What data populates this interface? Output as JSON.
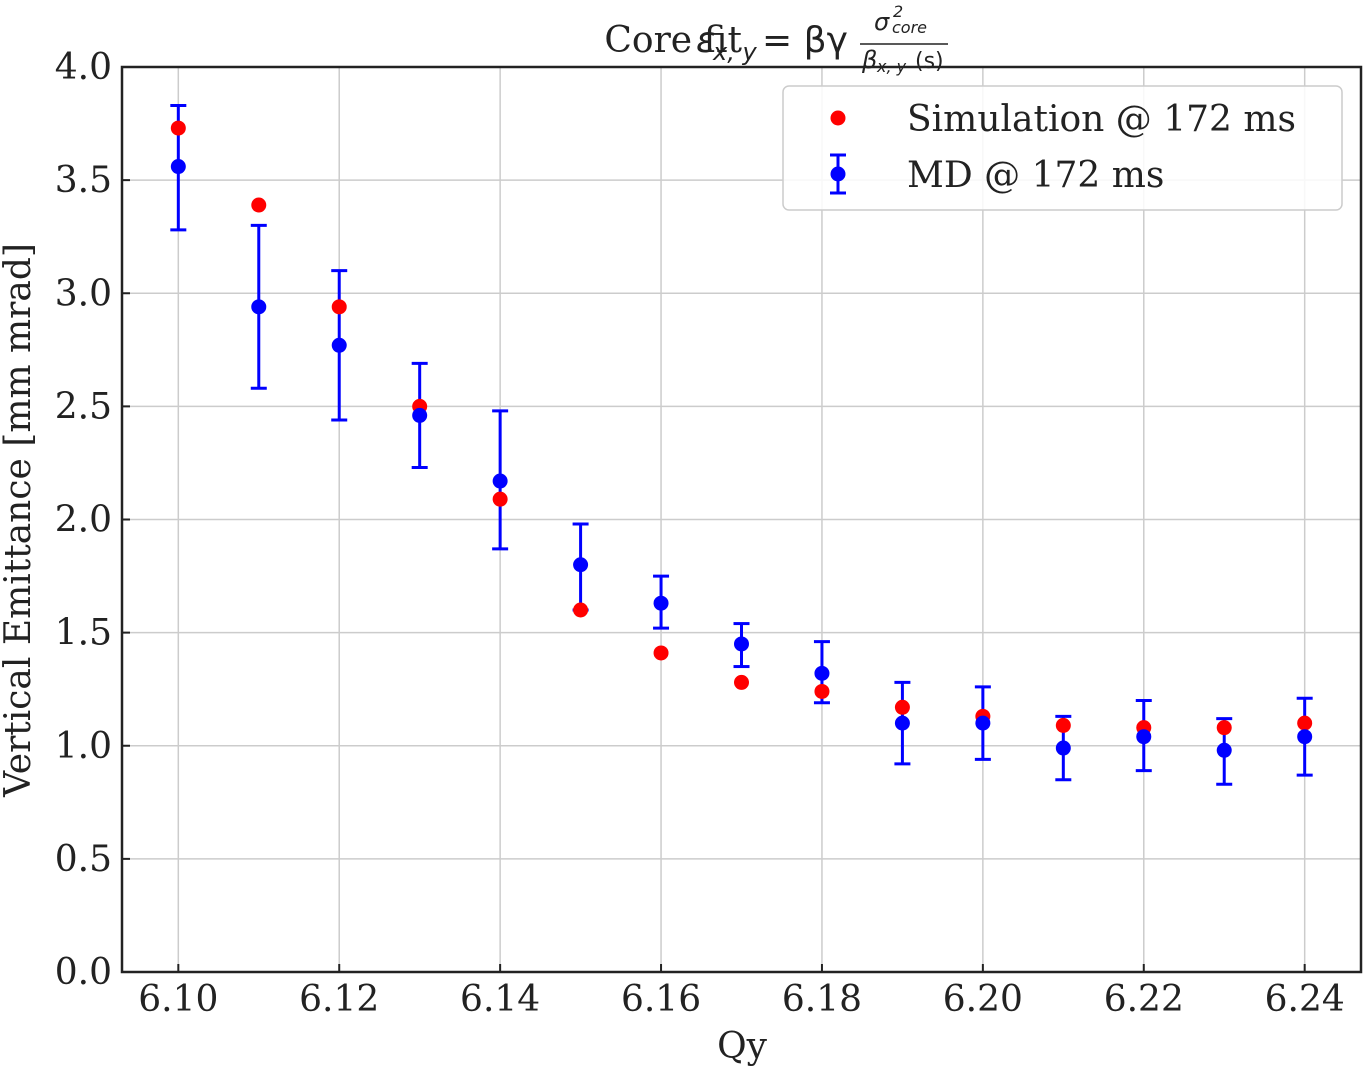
{
  "chart_data": {
    "type": "scatter",
    "title": {
      "prefix": "Core fit ",
      "lhs": "ε",
      "lhs_sub": "x, y",
      "equals": " = βγ",
      "numerator": "σ",
      "numerator_sup": "2",
      "numerator_sub": "core",
      "denominator": "β",
      "denominator_sub": "x, y",
      "denominator_tail": "(s)"
    },
    "xlabel": "Qy",
    "ylabel": "Vertical Emittance [mm mrad]",
    "xlim": [
      6.093,
      6.247
    ],
    "ylim": [
      0.0,
      4.0
    ],
    "x_ticks": [
      "6.10",
      "6.12",
      "6.14",
      "6.16",
      "6.18",
      "6.20",
      "6.22",
      "6.24"
    ],
    "y_ticks": [
      "0.0",
      "0.5",
      "1.0",
      "1.5",
      "2.0",
      "2.5",
      "3.0",
      "3.5",
      "4.0"
    ],
    "grid": true,
    "legend_position": "top-right",
    "series": [
      {
        "name": "Simulation @ 172 ms",
        "color": "#ff0000",
        "marker": "circle",
        "x": [
          6.1,
          6.11,
          6.12,
          6.13,
          6.14,
          6.15,
          6.16,
          6.17,
          6.18,
          6.19,
          6.2,
          6.21,
          6.22,
          6.23,
          6.24
        ],
        "y": [
          3.73,
          3.39,
          2.94,
          2.5,
          2.09,
          1.6,
          1.41,
          1.28,
          1.24,
          1.17,
          1.13,
          1.09,
          1.08,
          1.08,
          1.1
        ]
      },
      {
        "name": "MD @ 172 ms",
        "color": "#0000ff",
        "marker": "circle",
        "errorbars": true,
        "x": [
          6.1,
          6.11,
          6.12,
          6.13,
          6.14,
          6.15,
          6.16,
          6.17,
          6.18,
          6.19,
          6.2,
          6.21,
          6.22,
          6.23,
          6.24
        ],
        "y": [
          3.56,
          2.94,
          2.77,
          2.46,
          2.17,
          1.8,
          1.63,
          1.45,
          1.32,
          1.1,
          1.1,
          0.99,
          1.04,
          0.98,
          1.04
        ],
        "yerr_low": [
          3.28,
          2.58,
          2.44,
          2.23,
          1.87,
          1.6,
          1.52,
          1.35,
          1.19,
          0.92,
          0.94,
          0.85,
          0.89,
          0.83,
          0.87
        ],
        "yerr_high": [
          3.83,
          3.3,
          3.1,
          2.69,
          2.48,
          1.98,
          1.75,
          1.54,
          1.46,
          1.28,
          1.26,
          1.13,
          1.2,
          1.12,
          1.21
        ]
      }
    ]
  }
}
